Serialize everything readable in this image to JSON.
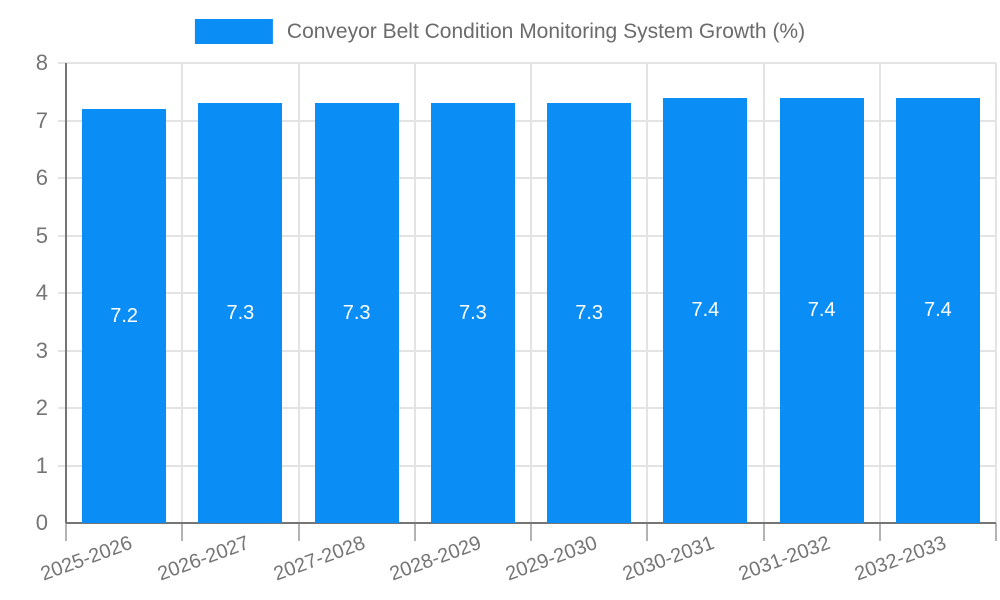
{
  "chart_data": {
    "type": "bar",
    "title": "Conveyor Belt Condition Monitoring System Growth (%)",
    "series_name": "Conveyor Belt Condition Monitoring System Growth (%)",
    "categories": [
      "2025-2026",
      "2026-2027",
      "2027-2028",
      "2028-2029",
      "2029-2030",
      "2030-2031",
      "2031-2032",
      "2032-2033"
    ],
    "values": [
      7.2,
      7.3,
      7.3,
      7.3,
      7.3,
      7.4,
      7.4,
      7.4
    ],
    "value_labels": [
      "7.2",
      "7.3",
      "7.3",
      "7.3",
      "7.3",
      "7.4",
      "7.4",
      "7.4"
    ],
    "xlabel": "",
    "ylabel": "",
    "ylim": [
      0,
      8
    ],
    "yticks": [
      0,
      1,
      2,
      3,
      4,
      5,
      6,
      7,
      8
    ],
    "grid": true,
    "legend_position": "top",
    "colors": {
      "bar": "#0a8df5",
      "bar_label": "#ffffff",
      "grid": "#e3e3e3",
      "axis": "#757575",
      "tick": "#b3b3b3",
      "tick_label": "#757575",
      "legend_label": "#6b6b6b",
      "background": "#ffffff"
    }
  }
}
